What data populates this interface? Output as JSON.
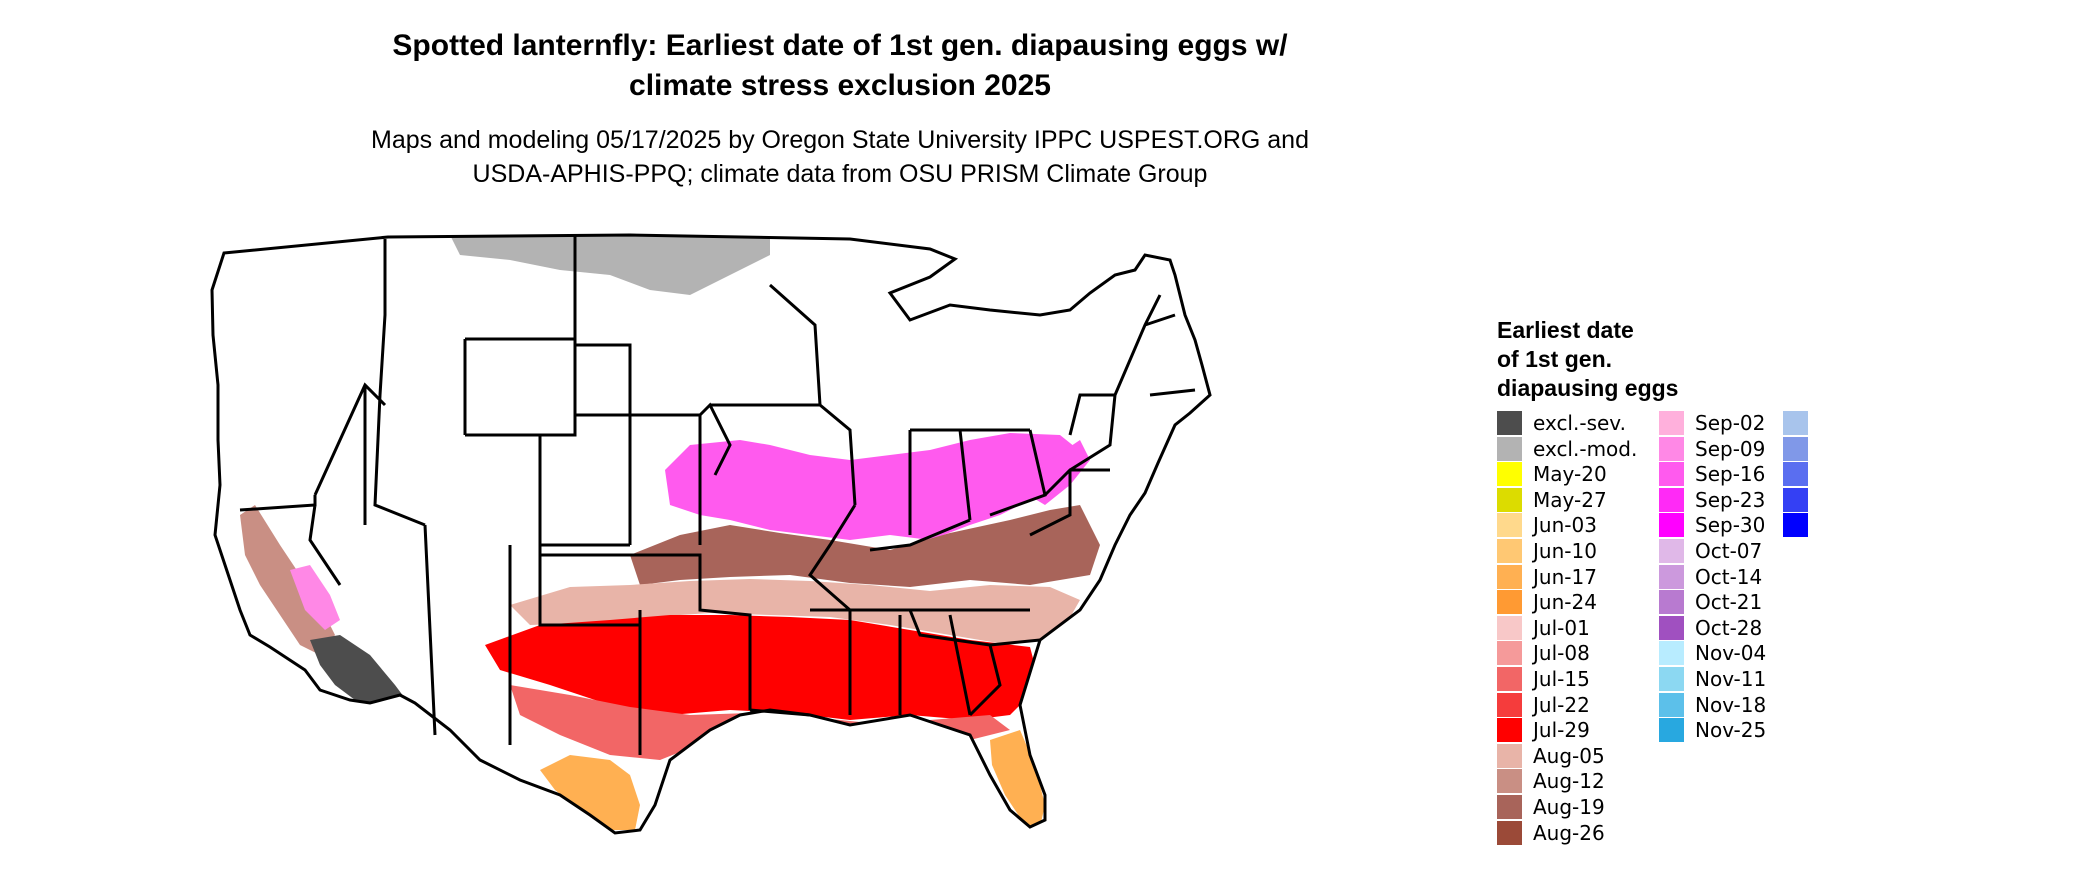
{
  "title_lines": [
    "Spotted lanternfly: Earliest date of 1st gen. diapausing eggs w/",
    "climate stress exclusion 2025"
  ],
  "subtitle_lines": [
    "Maps and modeling 05/17/2025 by Oregon State University IPPC USPEST.ORG and",
    "USDA-APHIS-PPQ; climate data from OSU PRISM Climate Group"
  ],
  "legend": {
    "title_lines": [
      "Earliest date",
      "of 1st gen.",
      "diapausing eggs"
    ],
    "items": [
      {
        "label": "excl.-sev.",
        "color": "#4d4d4d"
      },
      {
        "label": "excl.-mod.",
        "color": "#b3b3b3"
      },
      {
        "label": "May-20",
        "color": "#ffff00"
      },
      {
        "label": "May-27",
        "color": "#dcdc00"
      },
      {
        "label": "Jun-03",
        "color": "#ffd98c"
      },
      {
        "label": "Jun-10",
        "color": "#ffc873"
      },
      {
        "label": "Jun-17",
        "color": "#ffb052"
      },
      {
        "label": "Jun-24",
        "color": "#ff9a33"
      },
      {
        "label": "Jul-01",
        "color": "#f8c8c8"
      },
      {
        "label": "Jul-08",
        "color": "#f59a9a"
      },
      {
        "label": "Jul-15",
        "color": "#f26666"
      },
      {
        "label": "Jul-22",
        "color": "#f53c3c"
      },
      {
        "label": "Jul-29",
        "color": "#ff0000"
      },
      {
        "label": "Aug-05",
        "color": "#e8b4a8"
      },
      {
        "label": "Aug-12",
        "color": "#c98f84"
      },
      {
        "label": "Aug-19",
        "color": "#a8645a"
      },
      {
        "label": "Aug-26",
        "color": "#9b4a38"
      },
      {
        "label": "Sep-02",
        "color": "#ffb0dc"
      },
      {
        "label": "Sep-09",
        "color": "#ff88e6"
      },
      {
        "label": "Sep-16",
        "color": "#ff5aee"
      },
      {
        "label": "Sep-23",
        "color": "#ff2af6"
      },
      {
        "label": "Sep-30",
        "color": "#ff00ff"
      },
      {
        "label": "Oct-07",
        "color": "#e0b8e8"
      },
      {
        "label": "Oct-14",
        "color": "#cc99dd"
      },
      {
        "label": "Oct-21",
        "color": "#b87ad0"
      },
      {
        "label": "Oct-28",
        "color": "#a050c0"
      },
      {
        "label": "Nov-04",
        "color": "#b8ecff"
      },
      {
        "label": "Nov-11",
        "color": "#8cd8f2"
      },
      {
        "label": "Nov-18",
        "color": "#5cc0ea"
      },
      {
        "label": "Nov-25",
        "color": "#28a8e0"
      },
      {
        "label": "",
        "color": "#a8c4ec"
      },
      {
        "label": "",
        "color": "#8098e8"
      },
      {
        "label": "",
        "color": "#5a6ef0"
      },
      {
        "label": "",
        "color": "#3440f4"
      },
      {
        "label": "",
        "color": "#0000ff"
      }
    ]
  }
}
